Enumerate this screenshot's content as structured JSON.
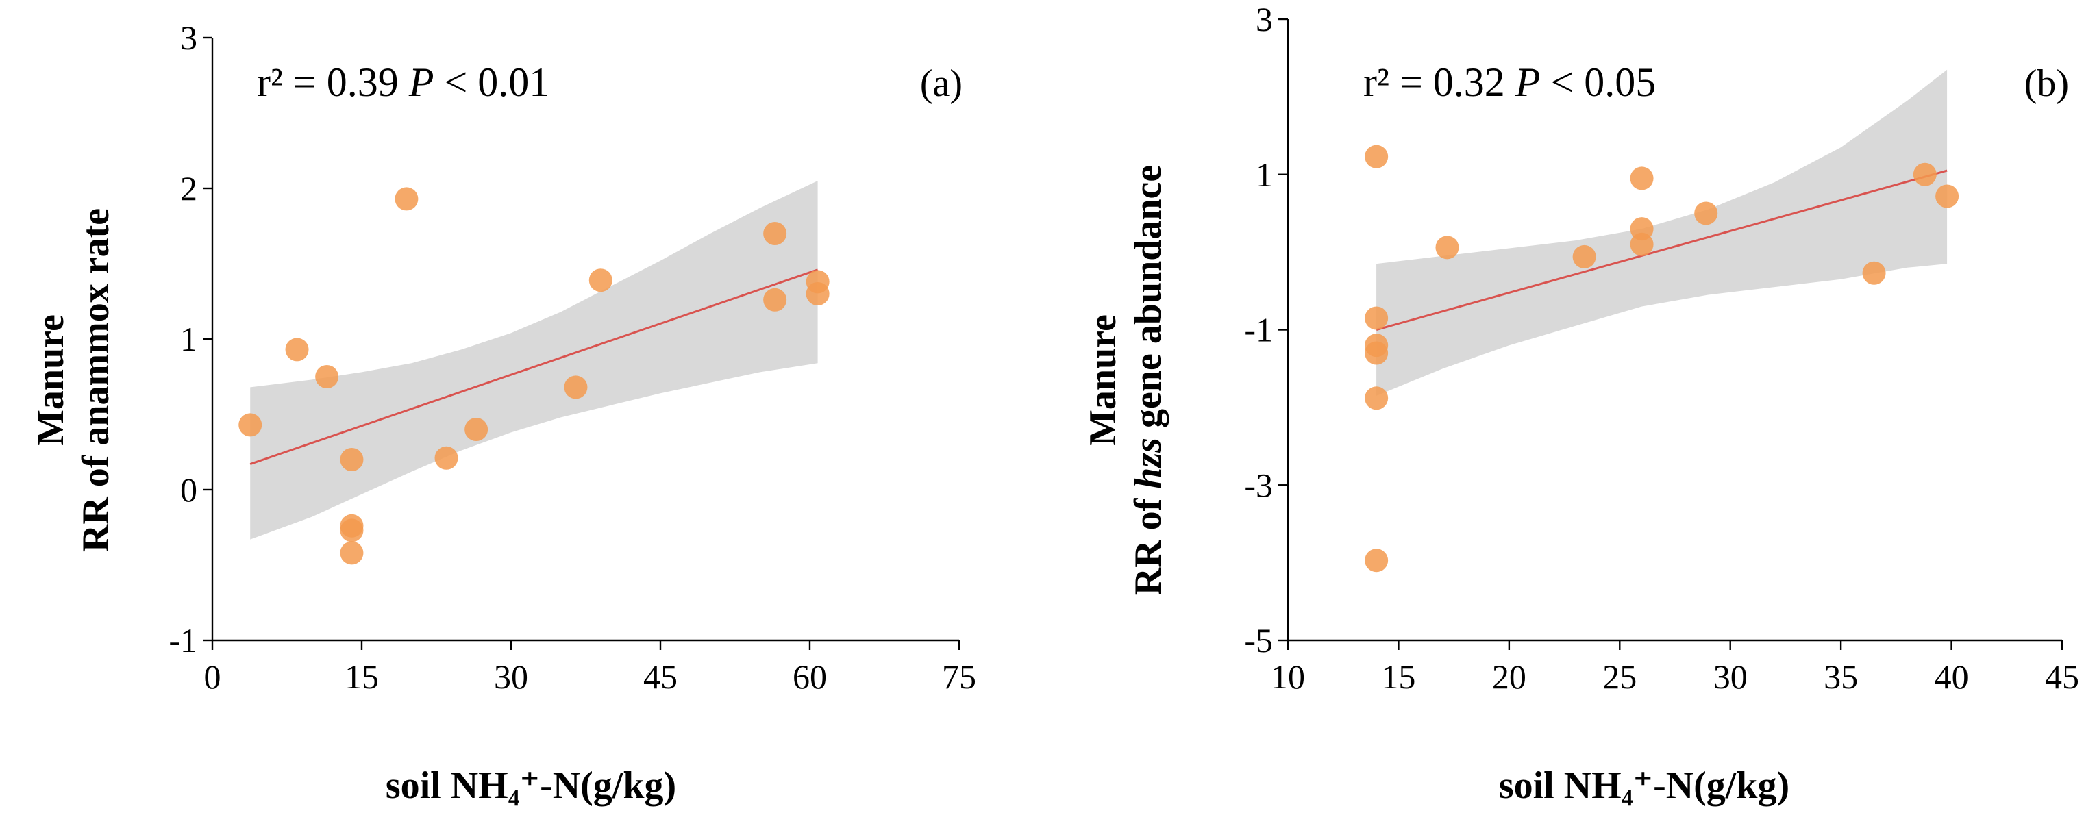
{
  "chart_data": [
    {
      "type": "scatter",
      "panel_label": "(a)",
      "stat_r2": "r² = 0.39",
      "stat_p_symbol": "P",
      "stat_p_value": " < 0.01",
      "ylabel_line1": "Manure",
      "ylabel_line2": "RR of anammox rate",
      "xlabel": "soil NH₄⁺-N(g/kg)",
      "xlim": [
        0,
        75
      ],
      "ylim": [
        -1,
        3
      ],
      "x_ticks": [
        0,
        15,
        30,
        45,
        60,
        75
      ],
      "y_ticks": [
        -1,
        0,
        1,
        2,
        3
      ],
      "x_tick_labels": [
        "0",
        "15",
        "30",
        "45",
        "60",
        "75"
      ],
      "y_tick_labels": [
        "-1",
        "0",
        "1",
        "2",
        "3"
      ],
      "points": [
        {
          "x": 3.8,
          "y": 0.43
        },
        {
          "x": 8.5,
          "y": 0.93
        },
        {
          "x": 11.5,
          "y": 0.75
        },
        {
          "x": 14.0,
          "y": 0.2
        },
        {
          "x": 14.0,
          "y": -0.24
        },
        {
          "x": 14.0,
          "y": -0.27
        },
        {
          "x": 14.0,
          "y": -0.42
        },
        {
          "x": 19.5,
          "y": 1.93
        },
        {
          "x": 23.5,
          "y": 0.21
        },
        {
          "x": 26.5,
          "y": 0.4
        },
        {
          "x": 36.5,
          "y": 0.68
        },
        {
          "x": 39.0,
          "y": 1.39
        },
        {
          "x": 56.5,
          "y": 1.7
        },
        {
          "x": 56.5,
          "y": 1.26
        },
        {
          "x": 60.8,
          "y": 1.38
        },
        {
          "x": 60.8,
          "y": 1.3
        }
      ],
      "fit": {
        "x": [
          3.8,
          60.8
        ],
        "y": [
          0.17,
          1.46
        ]
      },
      "ci_band": {
        "x": [
          3.8,
          10,
          15,
          20,
          25,
          30,
          35,
          40,
          45,
          50,
          55,
          60.8
        ],
        "upper": [
          0.68,
          0.73,
          0.78,
          0.84,
          0.93,
          1.04,
          1.18,
          1.35,
          1.52,
          1.7,
          1.87,
          2.05
        ],
        "lower": [
          -0.33,
          -0.18,
          -0.03,
          0.12,
          0.26,
          0.38,
          0.48,
          0.56,
          0.64,
          0.71,
          0.78,
          0.84
        ]
      }
    },
    {
      "type": "scatter",
      "panel_label": "(b)",
      "stat_r2": "r² = 0.32",
      "stat_p_symbol": "P",
      "stat_p_value": " < 0.05",
      "ylabel_line1": "Manure",
      "ylabel_prefix": "RR of ",
      "ylabel_italic": "hzs",
      "ylabel_suffix": " gene abundance",
      "xlabel": "soil NH₄⁺-N(g/kg)",
      "xlim": [
        10,
        45
      ],
      "ylim": [
        -5,
        3
      ],
      "x_ticks": [
        10,
        15,
        20,
        25,
        30,
        35,
        40,
        45
      ],
      "y_ticks": [
        -5,
        -3,
        -1,
        1,
        3
      ],
      "x_tick_labels": [
        "10",
        "15",
        "20",
        "25",
        "30",
        "35",
        "40",
        "45"
      ],
      "y_tick_labels": [
        "-5",
        "-3",
        "-1",
        "1",
        "3"
      ],
      "points": [
        {
          "x": 14.0,
          "y": 1.23
        },
        {
          "x": 14.0,
          "y": -0.85
        },
        {
          "x": 14.0,
          "y": -1.2
        },
        {
          "x": 14.0,
          "y": -1.3
        },
        {
          "x": 14.0,
          "y": -1.88
        },
        {
          "x": 14.0,
          "y": -3.97
        },
        {
          "x": 17.2,
          "y": 0.06
        },
        {
          "x": 23.4,
          "y": -0.06
        },
        {
          "x": 26.0,
          "y": 0.95
        },
        {
          "x": 26.0,
          "y": 0.3
        },
        {
          "x": 26.0,
          "y": 0.1
        },
        {
          "x": 28.9,
          "y": 0.5
        },
        {
          "x": 36.5,
          "y": -0.27
        },
        {
          "x": 38.8,
          "y": 1.0
        },
        {
          "x": 39.8,
          "y": 0.72
        }
      ],
      "fit": {
        "x": [
          14.0,
          39.8
        ],
        "y": [
          -1.0,
          1.05
        ]
      },
      "ci_band": {
        "x": [
          14.0,
          17,
          20,
          23,
          26,
          29,
          32,
          35,
          38,
          39.8
        ],
        "upper": [
          -0.15,
          -0.05,
          0.05,
          0.15,
          0.3,
          0.55,
          0.9,
          1.35,
          1.95,
          2.35
        ],
        "lower": [
          -1.85,
          -1.5,
          -1.2,
          -0.95,
          -0.7,
          -0.55,
          -0.45,
          -0.35,
          -0.2,
          -0.15
        ]
      }
    }
  ]
}
